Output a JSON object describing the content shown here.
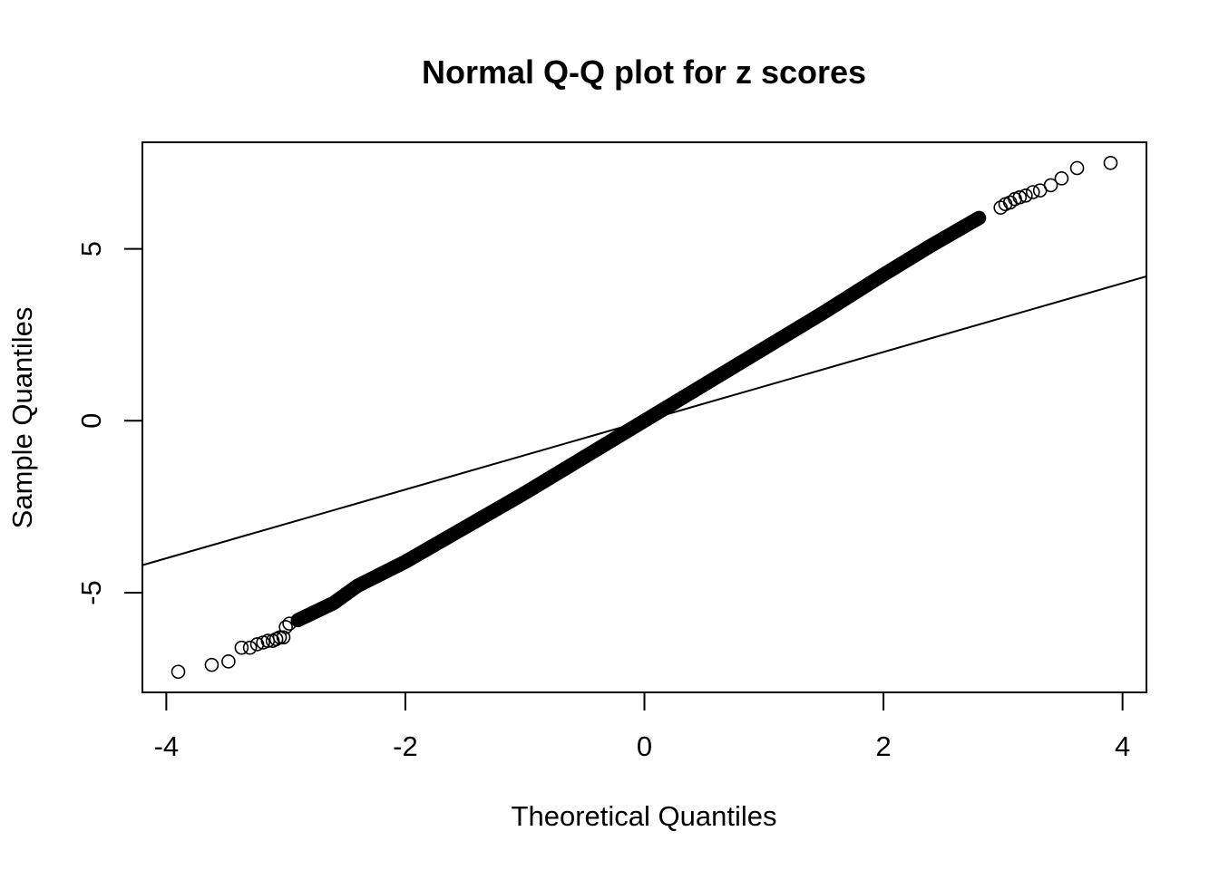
{
  "chart_data": {
    "type": "scatter",
    "title": "Normal Q-Q plot for z scores",
    "xlabel": "Theoretical Quantiles",
    "ylabel": "Sample Quantiles",
    "xlim": [
      -4.2,
      4.2
    ],
    "ylim": [
      -7.9,
      8.1
    ],
    "xticks": [
      -4,
      -2,
      0,
      2,
      4
    ],
    "xtick_labels": [
      "-4",
      "-2",
      "0",
      "2",
      "4"
    ],
    "yticks": [
      -5,
      0,
      5
    ],
    "ytick_labels": [
      "-5",
      "0",
      "5"
    ],
    "grid": false,
    "legend": "none",
    "marker": "open-circle",
    "reference_line": {
      "label": "qqline",
      "points": [
        [
          -4.2,
          -4.2
        ],
        [
          4.2,
          4.2
        ]
      ]
    },
    "sample_trend": {
      "x": [
        -2.9,
        -2.6,
        -2.4,
        -2.0,
        -1.5,
        -1.0,
        -0.5,
        0.0,
        0.5,
        1.0,
        1.5,
        2.0,
        2.4,
        2.8
      ],
      "y": [
        -5.8,
        -5.3,
        -4.8,
        -4.1,
        -3.1,
        -2.1,
        -1.05,
        0.0,
        1.05,
        2.1,
        3.15,
        4.25,
        5.1,
        5.9
      ]
    },
    "tail_points": {
      "x": [
        -3.9,
        -3.62,
        -3.48,
        -3.37,
        -3.3,
        -3.24,
        -3.19,
        -3.15,
        -3.11,
        -3.08,
        -3.05,
        -3.02,
        -3.0,
        -2.97,
        2.98,
        3.02,
        3.06,
        3.1,
        3.14,
        3.19,
        3.25,
        3.31,
        3.4,
        3.49,
        3.62,
        3.9
      ],
      "y": [
        -7.3,
        -7.1,
        -7.0,
        -6.6,
        -6.6,
        -6.5,
        -6.45,
        -6.4,
        -6.4,
        -6.35,
        -6.3,
        -6.3,
        -6.0,
        -5.9,
        6.2,
        6.3,
        6.35,
        6.45,
        6.5,
        6.55,
        6.65,
        6.7,
        6.85,
        7.05,
        7.35,
        7.5
      ]
    }
  }
}
